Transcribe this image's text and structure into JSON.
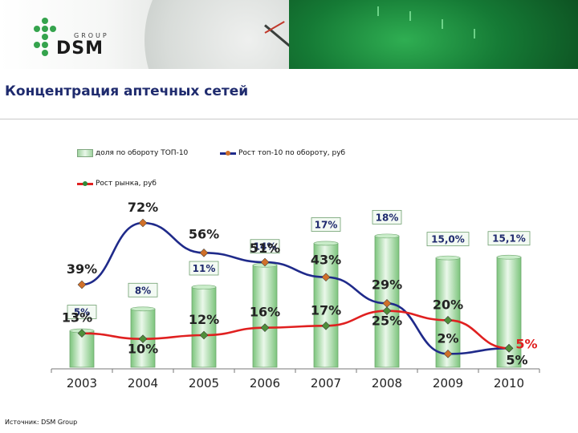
{
  "header": {
    "logo_text": "DSM",
    "logo_group": "GROUP"
  },
  "title": "Концентрация аптечных сетей",
  "source": "Источник: DSM Group",
  "colors": {
    "bar": "#8ccf8c",
    "bar_light": "#e8f6e8",
    "top10_line": "#1f2a8a",
    "market_line": "#e02020",
    "title": "#1f2b6e",
    "accent_red": "#e02020"
  },
  "chart_data": {
    "type": "bar",
    "categories": [
      "2003",
      "2004",
      "2005",
      "2006",
      "2007",
      "2008",
      "2009",
      "2010"
    ],
    "legend": {
      "position": "top",
      "entries": [
        "доля по обороту ТОП-10",
        "Рост топ-10 по обороту, руб",
        "Рост рынка, руб"
      ]
    },
    "series": [
      {
        "name": "доля по обороту ТОП-10",
        "kind": "bar",
        "values": [
          5,
          8,
          11,
          14,
          17,
          18,
          15.0,
          15.1
        ],
        "labels": [
          "5%",
          "8%",
          "11%",
          "14%",
          "17%",
          "18%",
          "15,0%",
          "15,1%"
        ]
      },
      {
        "name": "Рост топ-10 по обороту, руб",
        "kind": "line",
        "values": [
          39,
          72,
          56,
          51,
          43,
          29,
          2,
          5
        ],
        "labels": [
          "39%",
          "72%",
          "56%",
          "51%",
          "43%",
          "29%",
          "2%",
          "5%"
        ]
      },
      {
        "name": "Рост рынка, руб",
        "kind": "line",
        "values": [
          13,
          10,
          12,
          16,
          17,
          25,
          20,
          5
        ],
        "labels": [
          "13%",
          "10%",
          "12%",
          "16%",
          "17%",
          "25%",
          "20%",
          "5%"
        ]
      }
    ],
    "bar_ylim": [
      0,
      22
    ],
    "line_ylim": [
      0,
      90
    ],
    "grid": false
  }
}
